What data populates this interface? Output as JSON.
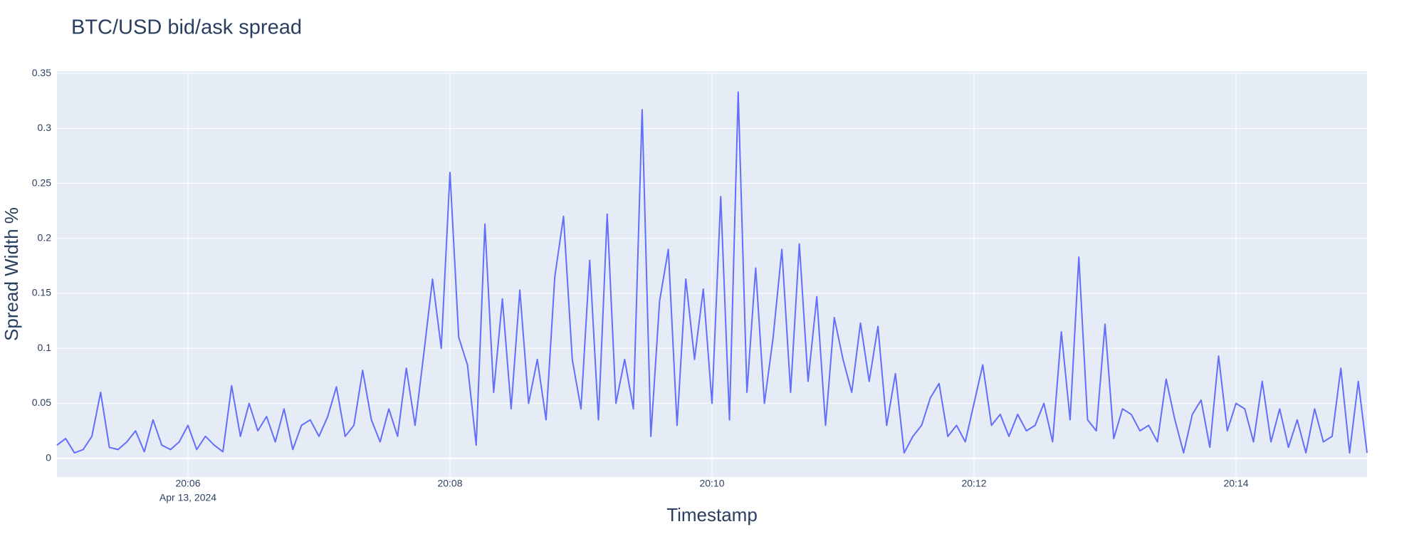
{
  "chart_data": {
    "type": "line",
    "title": "BTC/USD bid/ask spread",
    "x_label": "Timestamp",
    "y_label": "Spread Width %",
    "x_date": "Apr 13, 2024",
    "x": [
      "2024-04-13 20:05:00",
      "2024-04-13 20:05:04",
      "2024-04-13 20:05:08",
      "2024-04-13 20:05:12",
      "2024-04-13 20:05:16",
      "2024-04-13 20:05:20",
      "2024-04-13 20:05:24",
      "2024-04-13 20:05:28",
      "2024-04-13 20:05:32",
      "2024-04-13 20:05:36",
      "2024-04-13 20:05:40",
      "2024-04-13 20:05:44",
      "2024-04-13 20:05:48",
      "2024-04-13 20:05:52",
      "2024-04-13 20:05:56",
      "2024-04-13 20:06:00",
      "2024-04-13 20:06:04",
      "2024-04-13 20:06:08",
      "2024-04-13 20:06:12",
      "2024-04-13 20:06:16",
      "2024-04-13 20:06:20",
      "2024-04-13 20:06:24",
      "2024-04-13 20:06:28",
      "2024-04-13 20:06:32",
      "2024-04-13 20:06:36",
      "2024-04-13 20:06:40",
      "2024-04-13 20:06:44",
      "2024-04-13 20:06:48",
      "2024-04-13 20:06:52",
      "2024-04-13 20:06:56",
      "2024-04-13 20:07:00",
      "2024-04-13 20:07:04",
      "2024-04-13 20:07:08",
      "2024-04-13 20:07:12",
      "2024-04-13 20:07:16",
      "2024-04-13 20:07:20",
      "2024-04-13 20:07:24",
      "2024-04-13 20:07:28",
      "2024-04-13 20:07:32",
      "2024-04-13 20:07:36",
      "2024-04-13 20:07:40",
      "2024-04-13 20:07:44",
      "2024-04-13 20:07:48",
      "2024-04-13 20:07:52",
      "2024-04-13 20:07:56",
      "2024-04-13 20:08:00",
      "2024-04-13 20:08:04",
      "2024-04-13 20:08:08",
      "2024-04-13 20:08:12",
      "2024-04-13 20:08:16",
      "2024-04-13 20:08:20",
      "2024-04-13 20:08:24",
      "2024-04-13 20:08:28",
      "2024-04-13 20:08:32",
      "2024-04-13 20:08:36",
      "2024-04-13 20:08:40",
      "2024-04-13 20:08:44",
      "2024-04-13 20:08:48",
      "2024-04-13 20:08:52",
      "2024-04-13 20:08:56",
      "2024-04-13 20:09:00",
      "2024-04-13 20:09:04",
      "2024-04-13 20:09:08",
      "2024-04-13 20:09:12",
      "2024-04-13 20:09:16",
      "2024-04-13 20:09:20",
      "2024-04-13 20:09:24",
      "2024-04-13 20:09:28",
      "2024-04-13 20:09:32",
      "2024-04-13 20:09:36",
      "2024-04-13 20:09:40",
      "2024-04-13 20:09:44",
      "2024-04-13 20:09:48",
      "2024-04-13 20:09:52",
      "2024-04-13 20:09:56",
      "2024-04-13 20:10:00",
      "2024-04-13 20:10:04",
      "2024-04-13 20:10:08",
      "2024-04-13 20:10:12",
      "2024-04-13 20:10:16",
      "2024-04-13 20:10:20",
      "2024-04-13 20:10:24",
      "2024-04-13 20:10:28",
      "2024-04-13 20:10:32",
      "2024-04-13 20:10:36",
      "2024-04-13 20:10:40",
      "2024-04-13 20:10:44",
      "2024-04-13 20:10:48",
      "2024-04-13 20:10:52",
      "2024-04-13 20:10:56",
      "2024-04-13 20:11:00",
      "2024-04-13 20:11:04",
      "2024-04-13 20:11:08",
      "2024-04-13 20:11:12",
      "2024-04-13 20:11:16",
      "2024-04-13 20:11:20",
      "2024-04-13 20:11:24",
      "2024-04-13 20:11:28",
      "2024-04-13 20:11:32",
      "2024-04-13 20:11:36",
      "2024-04-13 20:11:40",
      "2024-04-13 20:11:44",
      "2024-04-13 20:11:48",
      "2024-04-13 20:11:52",
      "2024-04-13 20:11:56",
      "2024-04-13 20:12:00",
      "2024-04-13 20:12:04",
      "2024-04-13 20:12:08",
      "2024-04-13 20:12:12",
      "2024-04-13 20:12:16",
      "2024-04-13 20:12:20",
      "2024-04-13 20:12:24",
      "2024-04-13 20:12:28",
      "2024-04-13 20:12:32",
      "2024-04-13 20:12:36",
      "2024-04-13 20:12:40",
      "2024-04-13 20:12:44",
      "2024-04-13 20:12:48",
      "2024-04-13 20:12:52",
      "2024-04-13 20:12:56",
      "2024-04-13 20:13:00",
      "2024-04-13 20:13:04",
      "2024-04-13 20:13:08",
      "2024-04-13 20:13:12",
      "2024-04-13 20:13:16",
      "2024-04-13 20:13:20",
      "2024-04-13 20:13:24",
      "2024-04-13 20:13:28",
      "2024-04-13 20:13:32",
      "2024-04-13 20:13:36",
      "2024-04-13 20:13:40",
      "2024-04-13 20:13:44",
      "2024-04-13 20:13:48",
      "2024-04-13 20:13:52",
      "2024-04-13 20:13:56",
      "2024-04-13 20:14:00",
      "2024-04-13 20:14:04",
      "2024-04-13 20:14:08",
      "2024-04-13 20:14:12",
      "2024-04-13 20:14:16",
      "2024-04-13 20:14:20",
      "2024-04-13 20:14:24",
      "2024-04-13 20:14:28",
      "2024-04-13 20:14:32",
      "2024-04-13 20:14:36",
      "2024-04-13 20:14:40",
      "2024-04-13 20:14:44",
      "2024-04-13 20:14:48",
      "2024-04-13 20:14:52",
      "2024-04-13 20:14:56",
      "2024-04-13 20:15:00"
    ],
    "series": [
      {
        "color": "#636efa",
        "values": [
          0.012,
          0.018,
          0.005,
          0.008,
          0.02,
          0.06,
          0.01,
          0.008,
          0.015,
          0.025,
          0.006,
          0.035,
          0.012,
          0.008,
          0.015,
          0.03,
          0.008,
          0.02,
          0.012,
          0.006,
          0.066,
          0.02,
          0.05,
          0.025,
          0.038,
          0.015,
          0.045,
          0.008,
          0.03,
          0.035,
          0.02,
          0.038,
          0.065,
          0.02,
          0.03,
          0.08,
          0.035,
          0.015,
          0.045,
          0.02,
          0.082,
          0.03,
          0.095,
          0.163,
          0.1,
          0.26,
          0.11,
          0.085,
          0.012,
          0.213,
          0.06,
          0.145,
          0.045,
          0.153,
          0.05,
          0.09,
          0.035,
          0.165,
          0.22,
          0.09,
          0.045,
          0.18,
          0.035,
          0.222,
          0.05,
          0.09,
          0.045,
          0.317,
          0.02,
          0.143,
          0.19,
          0.03,
          0.163,
          0.09,
          0.154,
          0.05,
          0.238,
          0.035,
          0.333,
          0.06,
          0.173,
          0.05,
          0.11,
          0.19,
          0.06,
          0.195,
          0.07,
          0.147,
          0.03,
          0.128,
          0.09,
          0.06,
          0.123,
          0.07,
          0.12,
          0.03,
          0.077,
          0.005,
          0.02,
          0.03,
          0.055,
          0.068,
          0.02,
          0.03,
          0.015,
          0.05,
          0.085,
          0.03,
          0.04,
          0.02,
          0.04,
          0.025,
          0.03,
          0.05,
          0.015,
          0.115,
          0.035,
          0.183,
          0.035,
          0.025,
          0.122,
          0.018,
          0.045,
          0.04,
          0.025,
          0.03,
          0.015,
          0.072,
          0.035,
          0.005,
          0.04,
          0.053,
          0.01,
          0.093,
          0.025,
          0.05,
          0.045,
          0.015,
          0.07,
          0.015,
          0.045,
          0.01,
          0.035,
          0.005,
          0.045,
          0.015,
          0.02,
          0.082,
          0.005,
          0.07,
          0.005
        ]
      }
    ],
    "xlim": [
      "2024-04-13 20:05:00",
      "2024-04-13 20:15:00"
    ],
    "xticks": [
      {
        "value": "2024-04-13 20:06:00",
        "label": "20:06"
      },
      {
        "value": "2024-04-13 20:08:00",
        "label": "20:08"
      },
      {
        "value": "2024-04-13 20:10:00",
        "label": "20:10"
      },
      {
        "value": "2024-04-13 20:12:00",
        "label": "20:12"
      },
      {
        "value": "2024-04-13 20:14:00",
        "label": "20:14"
      }
    ],
    "ylim": [
      -0.017,
      0.352
    ],
    "yticks": [
      0,
      0.05,
      0.1,
      0.15,
      0.2,
      0.25,
      0.3,
      0.35
    ],
    "grid": true
  }
}
